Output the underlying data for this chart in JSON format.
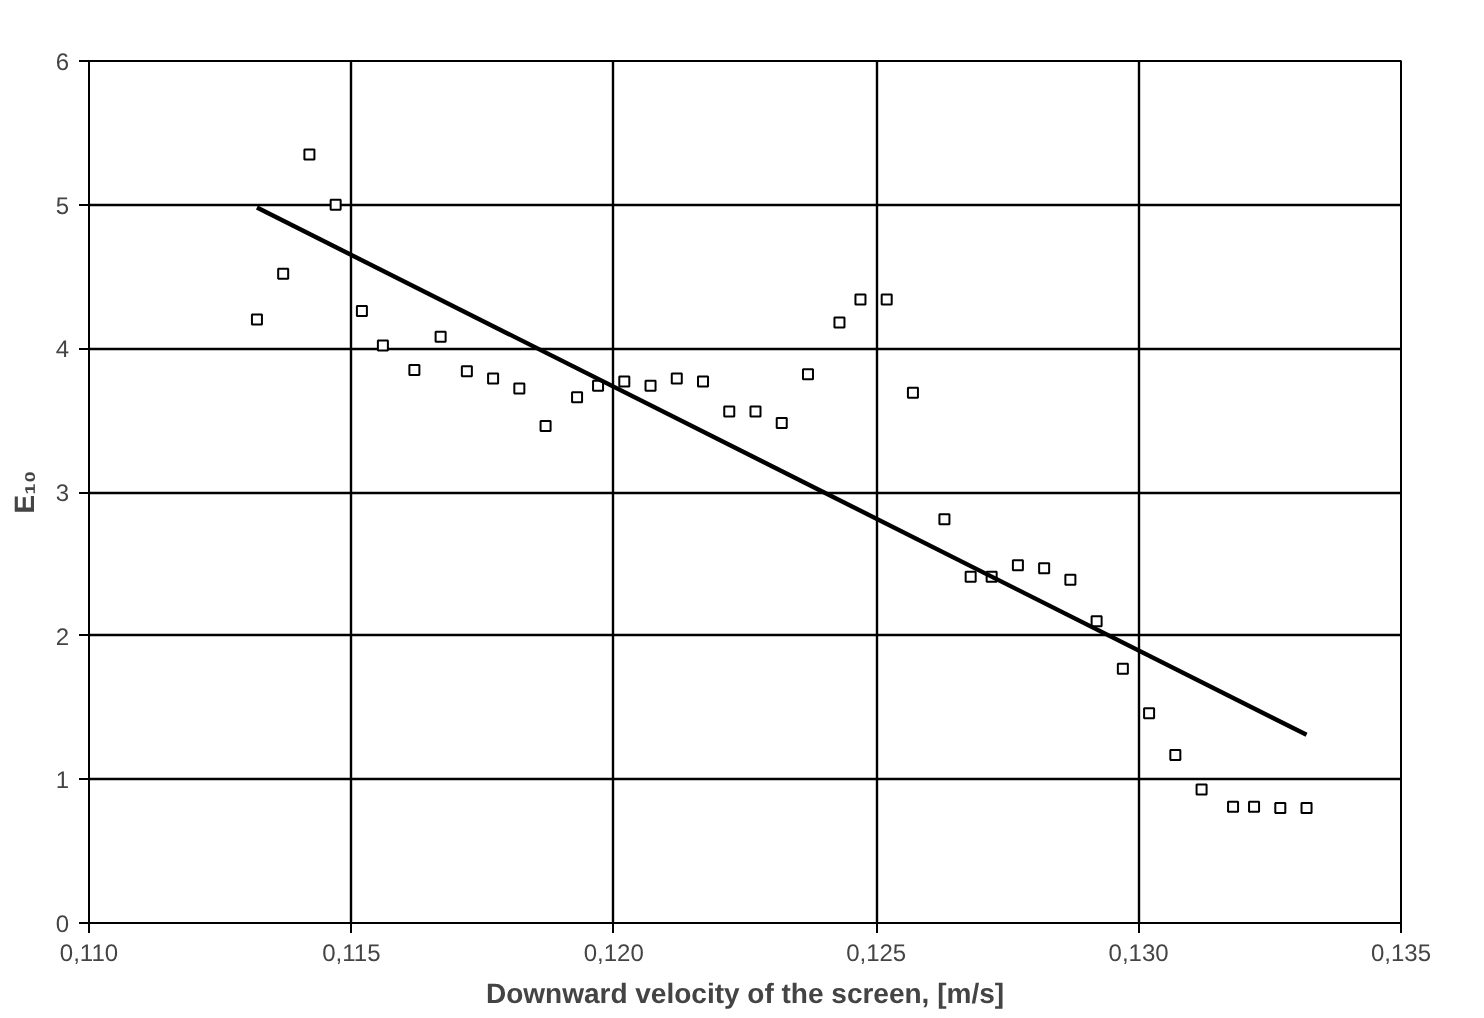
{
  "chart_data": {
    "type": "scatter",
    "xlabel": "Downward velocity of the screen, [m/s]",
    "ylabel": "E₁₀",
    "xlim": [
      0.11,
      0.135
    ],
    "ylim": [
      0,
      6
    ],
    "xticks": [
      {
        "value": 0.11,
        "label": "0,110"
      },
      {
        "value": 0.115,
        "label": "0,115"
      },
      {
        "value": 0.12,
        "label": "0,120"
      },
      {
        "value": 0.125,
        "label": "0,125"
      },
      {
        "value": 0.13,
        "label": "0,130"
      },
      {
        "value": 0.135,
        "label": "0,135"
      }
    ],
    "yticks": [
      0,
      1,
      2,
      3,
      4,
      5,
      6
    ],
    "grid": true,
    "marker": "square",
    "series": [
      {
        "color": "#000000",
        "x": [
          0.1132,
          0.1137,
          0.1142,
          0.1147,
          0.1152,
          0.1156,
          0.1162,
          0.1167,
          0.1172,
          0.1177,
          0.1182,
          0.1187,
          0.1193,
          0.1197,
          0.1202,
          0.1207,
          0.1212,
          0.1217,
          0.1222,
          0.1227,
          0.1232,
          0.1237,
          0.1243,
          0.1247,
          0.1252,
          0.1257,
          0.1263,
          0.1268,
          0.1272,
          0.1277,
          0.1282,
          0.1287,
          0.1292,
          0.1297,
          0.1302,
          0.1307,
          0.1312,
          0.1318,
          0.1322,
          0.1327,
          0.1332
        ],
        "values": [
          4.2,
          4.52,
          5.35,
          5.0,
          4.26,
          4.02,
          3.85,
          4.08,
          3.84,
          3.79,
          3.72,
          3.46,
          3.66,
          3.74,
          3.77,
          3.74,
          3.79,
          3.77,
          3.56,
          3.56,
          3.48,
          3.82,
          4.18,
          4.34,
          4.34,
          3.69,
          2.81,
          2.41,
          2.41,
          2.49,
          2.47,
          2.39,
          2.1,
          1.77,
          1.46,
          1.17,
          0.93,
          0.81,
          0.81,
          0.8,
          0.8
        ]
      },
      {
        "type": "line",
        "color": "#000000",
        "marker": "none",
        "x": [
          0.1132,
          0.1332
        ],
        "values": [
          4.98,
          1.31
        ]
      }
    ]
  }
}
